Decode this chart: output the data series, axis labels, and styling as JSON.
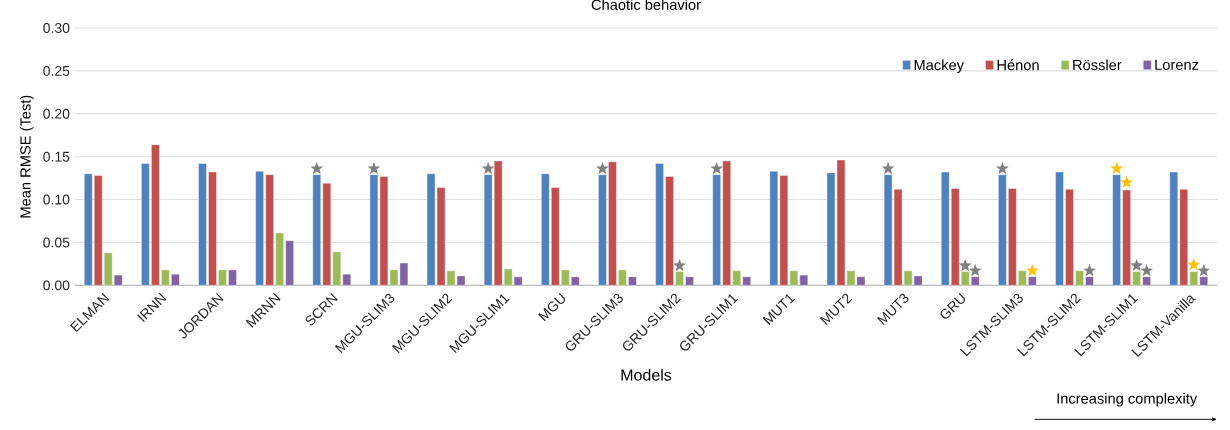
{
  "chart_data": {
    "type": "bar",
    "title": "Chaotic behavior",
    "xlabel": "Models",
    "ylabel": "Mean RMSE (Test)",
    "categories": [
      "ELMAN",
      "IRNN",
      "JORDAN",
      "MRNN",
      "SCRN",
      "MGU-SLIM3",
      "MGU-SLIM2",
      "MGU-SLIM1",
      "MGU",
      "GRU-SLIM3",
      "GRU-SLIM2",
      "GRU-SLIM1",
      "MUT1",
      "MUT2",
      "MUT3",
      "GRU",
      "LSTM-SLIM3",
      "LSTM-SLIM2",
      "LSTM-SLIM1",
      "LSTM-Vanilla"
    ],
    "series": [
      {
        "name": "Mackey",
        "color": "#4f81bd",
        "values": [
          0.13,
          0.142,
          0.142,
          0.133,
          0.129,
          0.129,
          0.13,
          0.129,
          0.13,
          0.129,
          0.142,
          0.129,
          0.133,
          0.131,
          0.129,
          0.132,
          0.129,
          0.132,
          0.129,
          0.132
        ]
      },
      {
        "name": "Hénon",
        "color": "#c0504d",
        "values": [
          0.128,
          0.164,
          0.132,
          0.129,
          0.119,
          0.127,
          0.114,
          0.145,
          0.114,
          0.144,
          0.127,
          0.145,
          0.128,
          0.146,
          0.112,
          0.113,
          0.113,
          0.112,
          0.111,
          0.112
        ]
      },
      {
        "name": "Rössler",
        "color": "#9bbb59",
        "values": [
          0.038,
          0.018,
          0.018,
          0.061,
          0.039,
          0.018,
          0.017,
          0.019,
          0.018,
          0.018,
          0.016,
          0.017,
          0.017,
          0.017,
          0.017,
          0.016,
          0.017,
          0.017,
          0.016,
          0.016
        ]
      },
      {
        "name": "Lorenz",
        "color": "#8064a2",
        "values": [
          0.012,
          0.013,
          0.018,
          0.052,
          0.013,
          0.026,
          0.011,
          0.01,
          0.01,
          0.01,
          0.01,
          0.01,
          0.012,
          0.01,
          0.011,
          0.01,
          0.01,
          0.01,
          0.01,
          0.01
        ]
      },
      {
        "type": "scatter",
        "marker": "star",
        "color": "#7f7f7f",
        "values": [
          null,
          null,
          null,
          null,
          0.136,
          0.136,
          null,
          0.136,
          null,
          0.136,
          0.023,
          0.136,
          null,
          null,
          0.136,
          0.023,
          0.136,
          0.017,
          0.023,
          0.017
        ]
      },
      {
        "type": "scatter",
        "marker": "star",
        "color": "#7f7f7f",
        "values": [
          null,
          null,
          null,
          null,
          null,
          null,
          null,
          null,
          null,
          null,
          null,
          null,
          null,
          null,
          null,
          0.017,
          null,
          null,
          0.017,
          null
        ]
      },
      {
        "type": "scatter",
        "marker": "star",
        "color": "#ffc000",
        "values": [
          null,
          null,
          null,
          null,
          null,
          null,
          null,
          null,
          null,
          null,
          null,
          null,
          null,
          null,
          null,
          null,
          0.017,
          null,
          0.136,
          0.024
        ]
      },
      {
        "type": "scatter",
        "marker": "star",
        "color": "#ffc000",
        "values": [
          null,
          null,
          null,
          null,
          null,
          null,
          null,
          null,
          null,
          null,
          null,
          null,
          null,
          null,
          null,
          null,
          null,
          null,
          0.12,
          null
        ]
      }
    ],
    "ylim": [
      0,
      0.3
    ],
    "yticks": [
      {
        "value": 0,
        "label": "0.00"
      },
      {
        "value": 0.05,
        "label": "0.05"
      },
      {
        "value": 0.1,
        "label": "0.10"
      },
      {
        "value": 0.15,
        "label": "0.15"
      },
      {
        "value": 0.2,
        "label": "0.20"
      },
      {
        "value": 0.25,
        "label": "0.25"
      },
      {
        "value": 0.3,
        "label": "0.30"
      }
    ],
    "grid": "y",
    "legend": "top right",
    "annotations": [
      "Increasing complexity"
    ]
  }
}
